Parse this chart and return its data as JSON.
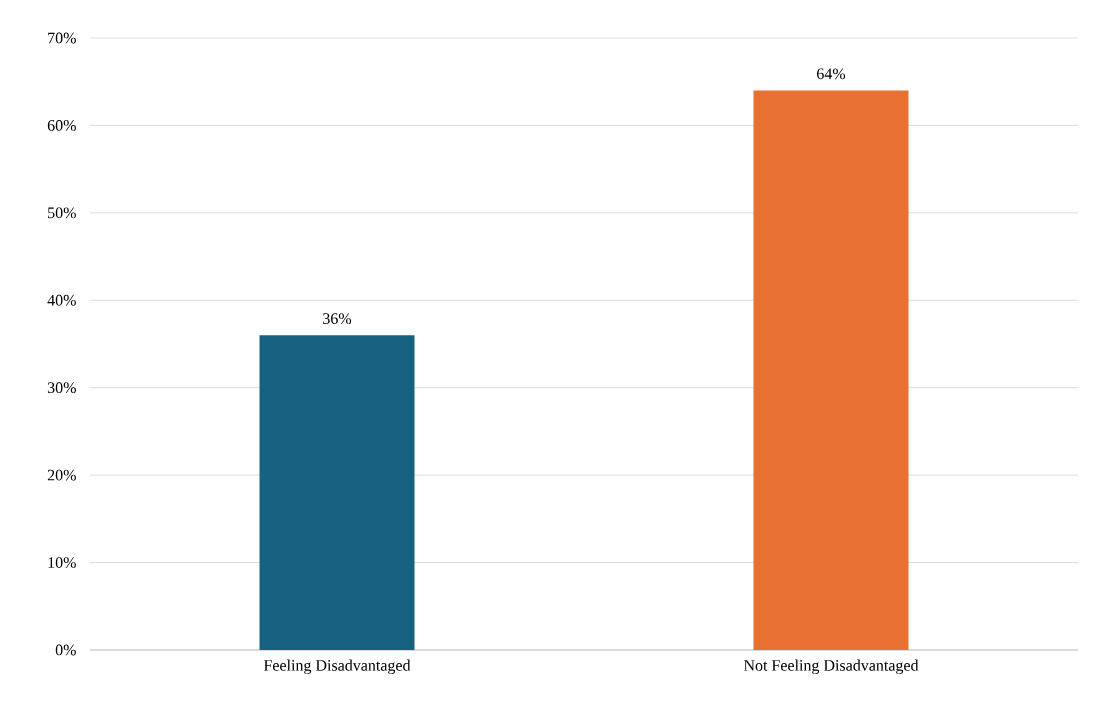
{
  "chart_data": {
    "type": "bar",
    "categories": [
      "Feeling Disadvantaged",
      "Not Feeling Disadvantaged"
    ],
    "values": [
      36,
      64
    ],
    "colors": [
      "#17607f",
      "#e87033"
    ],
    "value_labels": [
      "36%",
      "64%"
    ],
    "ylim": [
      0,
      70
    ],
    "yticks": [
      {
        "value": 0,
        "label": "0%"
      },
      {
        "value": 10,
        "label": "10%"
      },
      {
        "value": 20,
        "label": "20%"
      },
      {
        "value": 30,
        "label": "30%"
      },
      {
        "value": 40,
        "label": "40%"
      },
      {
        "value": 50,
        "label": "50%"
      },
      {
        "value": 60,
        "label": "60%"
      },
      {
        "value": 70,
        "label": "70%"
      }
    ],
    "grid": "y"
  }
}
